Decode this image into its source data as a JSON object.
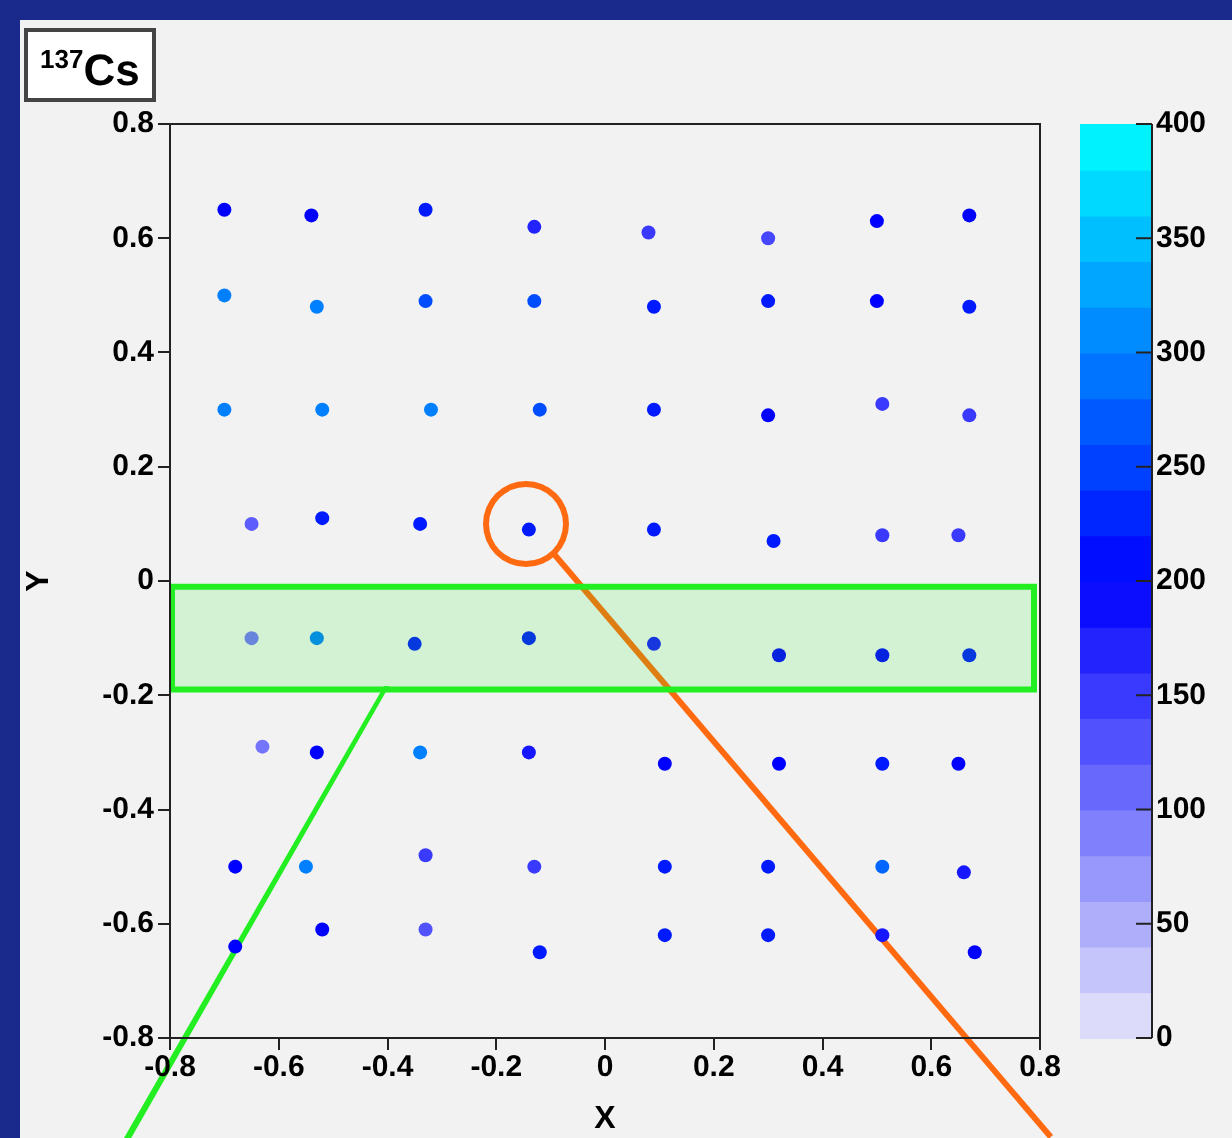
{
  "chart_data": {
    "type": "scatter",
    "title": "$^{137}$Cs",
    "xlabel": "X",
    "ylabel": "Y",
    "x": [
      -0.7,
      -0.54,
      -0.33,
      -0.13,
      0.08,
      0.3,
      0.5,
      0.67,
      -0.7,
      -0.53,
      -0.33,
      -0.13,
      0.09,
      0.3,
      0.5,
      0.67,
      -0.7,
      -0.52,
      -0.32,
      -0.12,
      0.09,
      0.3,
      0.51,
      0.67,
      -0.65,
      -0.52,
      -0.34,
      -0.14,
      0.09,
      0.31,
      0.51,
      0.65,
      -0.65,
      -0.53,
      -0.35,
      -0.14,
      0.09,
      0.32,
      0.51,
      0.67,
      -0.63,
      -0.53,
      -0.34,
      -0.14,
      0.11,
      0.32,
      0.51,
      0.65,
      -0.68,
      -0.55,
      -0.33,
      -0.13,
      0.11,
      0.3,
      0.51,
      0.66,
      -0.68,
      -0.52,
      -0.33,
      -0.12,
      0.11,
      0.3,
      0.51,
      0.68
    ],
    "values": [
      0.65,
      0.64,
      0.65,
      0.62,
      0.61,
      0.6,
      0.63,
      0.64,
      0.5,
      0.48,
      0.49,
      0.49,
      0.48,
      0.49,
      0.49,
      0.48,
      0.3,
      0.3,
      0.3,
      0.3,
      0.3,
      0.29,
      0.31,
      0.29,
      0.1,
      0.11,
      0.1,
      0.09,
      0.09,
      0.07,
      0.08,
      0.08,
      -0.1,
      -0.1,
      -0.11,
      -0.1,
      -0.11,
      -0.13,
      -0.13,
      -0.13,
      -0.29,
      -0.3,
      -0.3,
      -0.3,
      -0.32,
      -0.32,
      -0.32,
      -0.32,
      -0.5,
      -0.5,
      -0.48,
      -0.5,
      -0.5,
      -0.5,
      -0.5,
      -0.51,
      -0.64,
      -0.61,
      -0.61,
      -0.65,
      -0.62,
      -0.62,
      -0.62,
      -0.65
    ],
    "cvalues": [
      200,
      200,
      220,
      170,
      150,
      140,
      200,
      200,
      300,
      300,
      260,
      260,
      220,
      220,
      200,
      220,
      300,
      300,
      300,
      260,
      220,
      200,
      150,
      150,
      120,
      220,
      220,
      220,
      220,
      220,
      150,
      150,
      100,
      300,
      220,
      220,
      180,
      200,
      200,
      220,
      100,
      200,
      300,
      180,
      200,
      200,
      220,
      200,
      200,
      300,
      150,
      150,
      220,
      220,
      280,
      180,
      200,
      200,
      130,
      220,
      220,
      220,
      180,
      200
    ],
    "marker": "circle",
    "xlim": [
      -0.8,
      0.8
    ],
    "xticks": [
      -0.8,
      -0.6,
      -0.4,
      -0.2,
      0,
      0.2,
      0.4,
      0.6,
      0.8
    ],
    "ylim": [
      -0.8,
      0.8
    ],
    "yticks": [
      -0.8,
      -0.6,
      -0.4,
      -0.2,
      0,
      0.2,
      0.4,
      0.6,
      0.8
    ],
    "clim": [
      0,
      400
    ],
    "cticks": [
      0,
      50,
      100,
      150,
      200,
      250,
      300,
      350,
      400
    ],
    "bands": [
      {
        "axis": "y",
        "from": -0.19,
        "to": -0.01,
        "color": "#22ee22"
      }
    ],
    "grid": false,
    "legend": false
  }
}
